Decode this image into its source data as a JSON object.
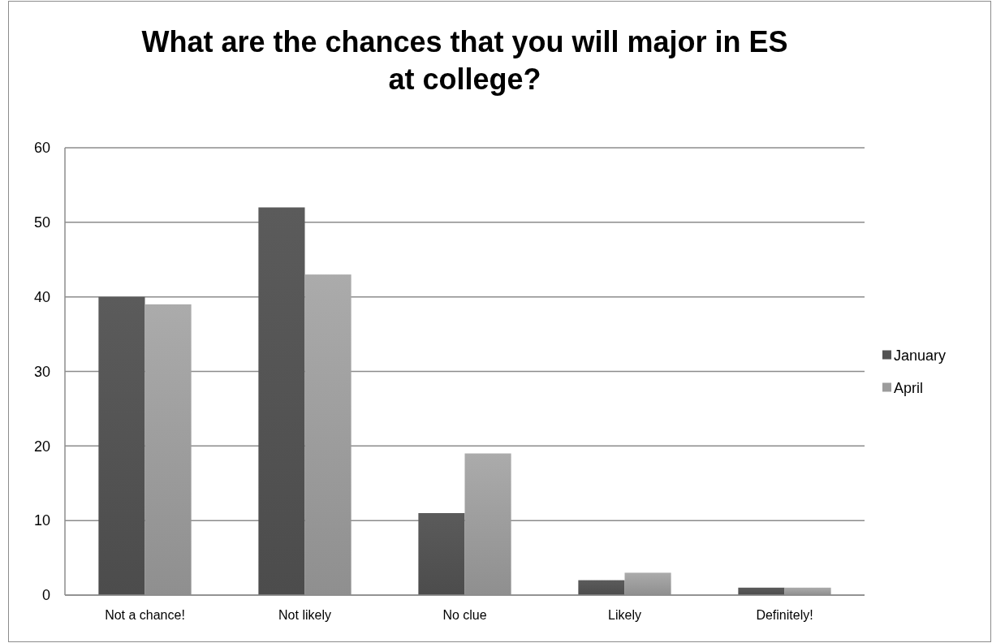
{
  "chart_data": {
    "type": "bar",
    "title": "What are the chances that you will major in ES at college?",
    "categories": [
      "Not a chance!",
      "Not likely",
      "No clue",
      "Likely",
      "Definitely!"
    ],
    "series": [
      {
        "name": "January",
        "color": "#535353",
        "values": [
          40,
          52,
          11,
          2,
          1
        ]
      },
      {
        "name": "April",
        "color": "#9c9c9c",
        "values": [
          39,
          43,
          19,
          3,
          1
        ]
      }
    ],
    "ylim": [
      0,
      60
    ],
    "yticks": [
      0,
      10,
      20,
      30,
      40,
      50,
      60
    ],
    "grid": "y",
    "legend": "right"
  }
}
